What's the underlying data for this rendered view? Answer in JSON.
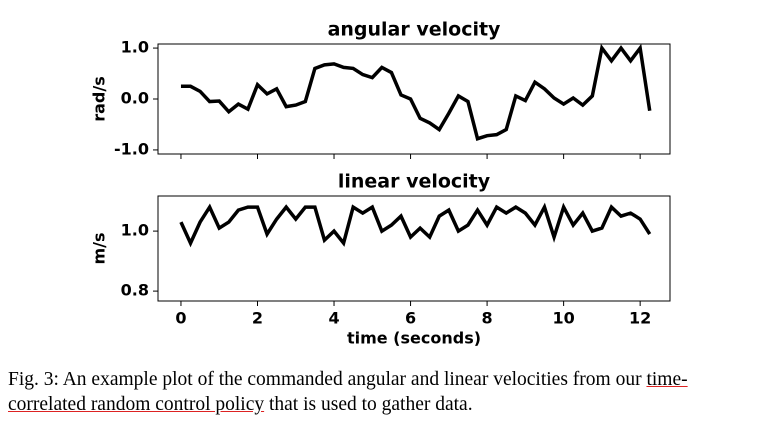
{
  "chart_data": [
    {
      "type": "line",
      "title": "angular velocity",
      "ylabel": "rad/s",
      "x": [
        0,
        0.25,
        0.5,
        0.75,
        1,
        1.25,
        1.5,
        1.75,
        2,
        2.25,
        2.5,
        2.75,
        3,
        3.25,
        3.5,
        3.75,
        4,
        4.25,
        4.5,
        4.75,
        5,
        5.25,
        5.5,
        5.75,
        6,
        6.25,
        6.5,
        6.75,
        7,
        7.25,
        7.5,
        7.75,
        8,
        8.25,
        8.5,
        8.75,
        9,
        9.25,
        9.5,
        9.75,
        10,
        10.25,
        10.5,
        10.75,
        11,
        11.25,
        11.5,
        11.75,
        12,
        12.25
      ],
      "series": [
        {
          "color": "#000000",
          "values": [
            0.25,
            0.25,
            0.15,
            -0.05,
            -0.04,
            -0.25,
            -0.1,
            -0.2,
            0.28,
            0.1,
            0.2,
            -0.15,
            -0.12,
            -0.05,
            0.6,
            0.67,
            0.69,
            0.62,
            0.6,
            0.48,
            0.42,
            0.62,
            0.52,
            0.08,
            0.0,
            -0.38,
            -0.47,
            -0.6,
            -0.28,
            0.06,
            -0.05,
            -0.78,
            -0.72,
            -0.7,
            -0.6,
            0.06,
            -0.03,
            0.33,
            0.2,
            0.02,
            -0.1,
            0.02,
            -0.12,
            0.06,
            1.0,
            0.75,
            1.0,
            0.75,
            1.0,
            -0.23
          ]
        }
      ],
      "xlim": [
        -0.6,
        12.78
      ],
      "xticks": [
        0,
        2,
        4,
        6,
        8,
        10,
        12
      ],
      "ylim": [
        -1.08,
        1.08
      ],
      "yticks": [
        {
          "value": -1,
          "label": "-1.0"
        },
        {
          "value": 0,
          "label": "0.0"
        },
        {
          "value": 1,
          "label": "1.0"
        }
      ]
    },
    {
      "type": "line",
      "title": "linear velocity",
      "ylabel": "m/s",
      "xlabel": "time (seconds)",
      "x": [
        0,
        0.25,
        0.5,
        0.75,
        1,
        1.25,
        1.5,
        1.75,
        2,
        2.25,
        2.5,
        2.75,
        3,
        3.25,
        3.5,
        3.75,
        4,
        4.25,
        4.5,
        4.75,
        5,
        5.25,
        5.5,
        5.75,
        6,
        6.25,
        6.5,
        6.75,
        7,
        7.25,
        7.5,
        7.75,
        8,
        8.25,
        8.5,
        8.75,
        9,
        9.25,
        9.5,
        9.75,
        10,
        10.25,
        10.5,
        10.75,
        11,
        11.25,
        11.5,
        11.75,
        12,
        12.25
      ],
      "series": [
        {
          "color": "#000000",
          "values": [
            1.03,
            0.96,
            1.03,
            1.08,
            1.01,
            1.03,
            1.07,
            1.08,
            1.08,
            0.99,
            1.04,
            1.08,
            1.04,
            1.08,
            1.08,
            0.97,
            1.0,
            0.96,
            1.08,
            1.06,
            1.08,
            1.0,
            1.02,
            1.05,
            0.98,
            1.01,
            0.98,
            1.05,
            1.07,
            1.0,
            1.02,
            1.07,
            1.02,
            1.08,
            1.06,
            1.08,
            1.06,
            1.02,
            1.08,
            0.98,
            1.08,
            1.02,
            1.06,
            1.0,
            1.01,
            1.08,
            1.05,
            1.06,
            1.04,
            0.99
          ]
        }
      ],
      "xlim": [
        -0.6,
        12.78
      ],
      "xticks": [
        0,
        2,
        4,
        6,
        8,
        10,
        12
      ],
      "ylim": [
        0.767,
        1.117
      ],
      "yticks": [
        0.8,
        {
          "value": 1,
          "label": "1.0"
        }
      ]
    }
  ],
  "caption": {
    "before": "Fig. 3: An example plot of the commanded angular and linear velocities from our ",
    "underlined": "time-correlated random control policy",
    "after": " that is used to gather data."
  }
}
